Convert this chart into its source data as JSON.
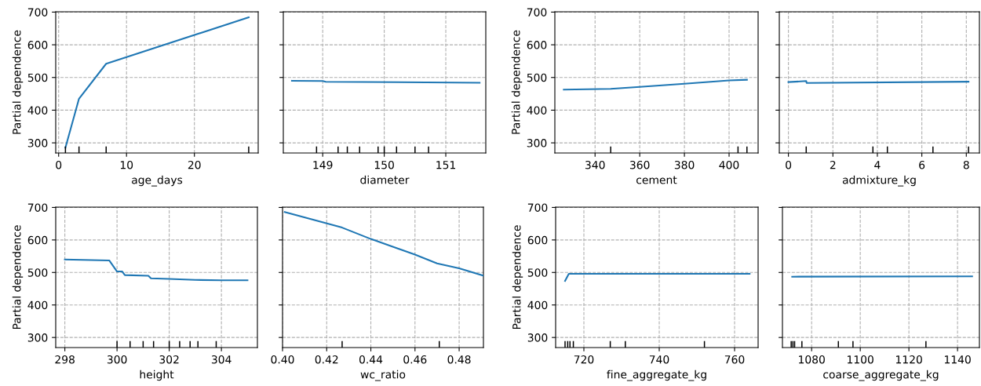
{
  "chart_data": [
    {
      "type": "line",
      "xlabel": "age_days",
      "ylabel": "Partial dependence",
      "xlim": [
        -0.43,
        29.4
      ],
      "xticks": [
        0,
        10,
        20
      ],
      "ylim": [
        269,
        701
      ],
      "yticks": [
        300,
        400,
        500,
        600,
        700
      ],
      "grid": true,
      "series": [
        {
          "color": "#1f77b4",
          "x": [
            1,
            3,
            7,
            28
          ],
          "values": [
            285,
            435,
            542,
            684
          ]
        },
        {
          "type": "bar",
          "color": "#000000",
          "x": [
            1,
            3,
            7,
            28
          ],
          "base": [
            269,
            269,
            269,
            269
          ],
          "values": [
            20,
            20,
            20,
            20
          ]
        }
      ]
    },
    {
      "type": "line",
      "xlabel": "diameter",
      "xlim": [
        148.36,
        151.65
      ],
      "xticks": [
        149,
        150,
        151
      ],
      "ylim": [
        269,
        701
      ],
      "yticks": [
        300,
        400,
        500,
        600,
        700
      ],
      "grid": true,
      "tick_labels": "x",
      "series": [
        {
          "color": "#1f77b4",
          "x": [
            148.5,
            149.0,
            149.05,
            151.55
          ],
          "values": [
            490,
            489,
            487,
            484
          ]
        },
        {
          "type": "bar",
          "color": "#000000",
          "x": [
            148.9,
            149.25,
            149.4,
            149.6,
            149.9,
            150.0,
            150.2,
            150.5,
            150.72
          ],
          "base": [
            269,
            269,
            269,
            269,
            269,
            269,
            269,
            269,
            269
          ],
          "values": [
            20,
            20,
            20,
            20,
            20,
            20,
            20,
            20,
            20
          ]
        }
      ]
    },
    {
      "type": "line",
      "xlabel": "cement",
      "ylabel": "Partial dependence",
      "xlim": [
        322,
        413
      ],
      "xticks": [
        340,
        360,
        380,
        400
      ],
      "ylim": [
        269,
        701
      ],
      "yticks": [
        300,
        400,
        500,
        600,
        700
      ],
      "grid": true,
      "series": [
        {
          "color": "#1f77b4",
          "x": [
            326,
            347,
            360,
            380,
            400,
            408
          ],
          "values": [
            463,
            465,
            471,
            481,
            491,
            493
          ]
        },
        {
          "type": "bar",
          "color": "#000000",
          "x": [
            347,
            404,
            408
          ],
          "base": [
            269,
            269,
            269
          ],
          "values": [
            20,
            20,
            20
          ]
        }
      ]
    },
    {
      "type": "line",
      "xlabel": "admixture_kg",
      "xlim": [
        -0.41,
        8.59
      ],
      "xticks": [
        0,
        2,
        4,
        6,
        8
      ],
      "ylim": [
        269,
        701
      ],
      "yticks": [
        300,
        400,
        500,
        600,
        700
      ],
      "grid": true,
      "tick_labels": "x",
      "series": [
        {
          "color": "#1f77b4",
          "x": [
            0,
            0.8,
            0.82,
            8.1
          ],
          "values": [
            486,
            489,
            483,
            487
          ]
        },
        {
          "type": "bar",
          "color": "#000000",
          "x": [
            0.8,
            3.8,
            4.45,
            6.5,
            8.1
          ],
          "base": [
            269,
            269,
            269,
            269,
            269
          ],
          "values": [
            20,
            20,
            20,
            20,
            20
          ]
        }
      ]
    },
    {
      "type": "line",
      "xlabel": "height",
      "ylabel": "Partial dependence",
      "xlim": [
        297.65,
        305.38
      ],
      "xticks": [
        298,
        300,
        302,
        304
      ],
      "ylim": [
        269,
        701
      ],
      "yticks": [
        300,
        400,
        500,
        600,
        700
      ],
      "grid": true,
      "series": [
        {
          "color": "#1f77b4",
          "x": [
            298,
            299.7,
            300,
            300.2,
            300.3,
            301.2,
            301.3,
            302,
            303,
            304,
            305
          ],
          "values": [
            540,
            537,
            503,
            503,
            492,
            490,
            482,
            480,
            477,
            476,
            476
          ]
        },
        {
          "type": "bar",
          "color": "#000000",
          "x": [
            300,
            300.5,
            301,
            301.4,
            302,
            302.4,
            302.8,
            303.1,
            303.8
          ],
          "base": [
            269,
            269,
            269,
            269,
            269,
            269,
            269,
            269,
            269
          ],
          "values": [
            20,
            20,
            20,
            20,
            20,
            20,
            20,
            20,
            20
          ]
        }
      ]
    },
    {
      "type": "line",
      "xlabel": "wc_ratio",
      "xlim": [
        0.4,
        0.491
      ],
      "xticks": [
        {
          "value": 0.4,
          "label": "0.40"
        },
        0.42,
        0.44,
        0.46,
        0.48
      ],
      "ylim": [
        269,
        701
      ],
      "yticks": [
        300,
        400,
        500,
        600,
        700
      ],
      "grid": true,
      "tick_labels": "x",
      "series": [
        {
          "color": "#1f77b4",
          "x": [
            0.401,
            0.427,
            0.44,
            0.46,
            0.47,
            0.48,
            0.491
          ],
          "values": [
            686,
            638,
            603,
            555,
            528,
            513,
            490
          ]
        },
        {
          "type": "bar",
          "color": "#000000",
          "x": [
            0.427,
            0.471
          ],
          "base": [
            269,
            269
          ],
          "values": [
            20,
            20
          ]
        }
      ]
    },
    {
      "type": "line",
      "xlabel": "fine_aggregate_kg",
      "ylabel": "Partial dependence",
      "xlim": [
        712.5,
        766.25
      ],
      "xticks": [
        720,
        740,
        760
      ],
      "ylim": [
        269,
        701
      ],
      "yticks": [
        300,
        400,
        500,
        600,
        700
      ],
      "grid": true,
      "series": [
        {
          "color": "#1f77b4",
          "x": [
            715,
            716,
            764
          ],
          "values": [
            474,
            496,
            496
          ]
        },
        {
          "type": "bar",
          "color": "#000000",
          "x": [
            715,
            715.7,
            716.3,
            717.2,
            727,
            731,
            752
          ],
          "base": [
            269,
            269,
            269,
            269,
            269,
            269,
            269
          ],
          "values": [
            20,
            20,
            20,
            20,
            20,
            20,
            20
          ]
        }
      ]
    },
    {
      "type": "line",
      "xlabel": "coarse_aggregate_kg",
      "xlim": [
        1068,
        1149
      ],
      "xticks": [
        1080,
        1100,
        1120,
        1140
      ],
      "ylim": [
        269,
        701
      ],
      "yticks": [
        300,
        400,
        500,
        600,
        700
      ],
      "grid": true,
      "tick_labels": "x",
      "series": [
        {
          "color": "#1f77b4",
          "x": [
            1072,
            1146
          ],
          "values": [
            487,
            488
          ]
        },
        {
          "type": "bar",
          "color": "#000000",
          "x": [
            1071.6,
            1072.3,
            1073.0,
            1076,
            1091,
            1097,
            1127
          ],
          "base": [
            269,
            269,
            269,
            269,
            269,
            269,
            269
          ],
          "values": [
            20,
            20,
            20,
            20,
            20,
            20,
            20
          ]
        }
      ]
    }
  ]
}
